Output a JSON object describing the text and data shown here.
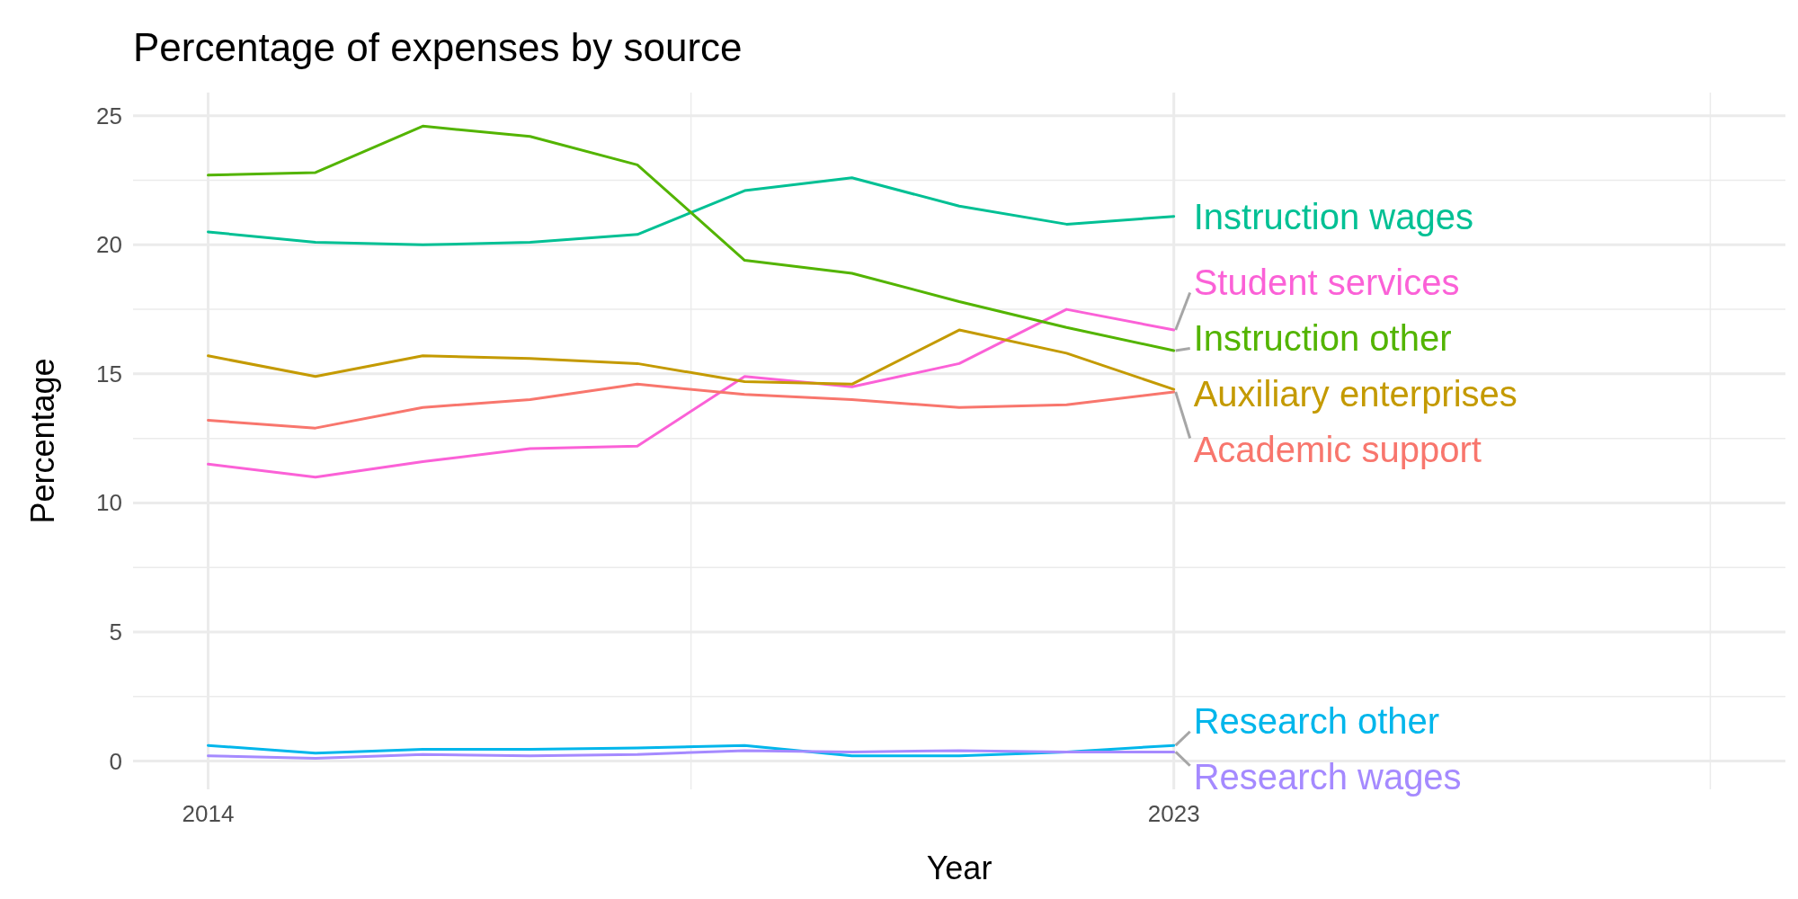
{
  "chart_data": {
    "type": "line",
    "title": "Percentage of expenses by source",
    "xlabel": "Year",
    "ylabel": "Percentage",
    "x": [
      2014,
      2015,
      2016,
      2017,
      2018,
      2019,
      2020,
      2021,
      2022,
      2023
    ],
    "xlim": [
      2013.3,
      2028.7
    ],
    "xticks": [
      2014,
      {
        "value": 2018.5,
        "label": null
      },
      2023,
      {
        "value": 2028,
        "label": null
      }
    ],
    "ylim": [
      -1.1,
      25.9
    ],
    "yticks": [
      0,
      {
        "value": 2.5,
        "label": null
      },
      5,
      {
        "value": 7.5,
        "label": null
      },
      10,
      {
        "value": 12.5,
        "label": null
      },
      15,
      {
        "value": 17.5,
        "label": null
      },
      20,
      {
        "value": 22.5,
        "label": null
      },
      25
    ],
    "grid": true,
    "series": [
      {
        "name": "Instruction wages",
        "color": "#00c094",
        "values": [
          20.5,
          20.1,
          20.0,
          20.1,
          20.4,
          22.1,
          22.6,
          21.5,
          20.8,
          21.1
        ]
      },
      {
        "name": "Student services",
        "color": "#fb61d7",
        "values": [
          11.5,
          11.0,
          11.6,
          12.1,
          12.2,
          14.9,
          14.5,
          15.4,
          17.5,
          16.7
        ]
      },
      {
        "name": "Instruction other",
        "color": "#53b400",
        "values": [
          22.7,
          22.8,
          24.6,
          24.2,
          23.1,
          19.4,
          18.9,
          17.8,
          16.8,
          15.9
        ]
      },
      {
        "name": "Auxiliary enterprises",
        "color": "#c49a00",
        "values": [
          15.7,
          14.9,
          15.7,
          15.6,
          15.4,
          14.7,
          14.6,
          16.7,
          15.8,
          14.4
        ]
      },
      {
        "name": "Academic support",
        "color": "#f8766d",
        "values": [
          13.2,
          12.9,
          13.7,
          14.0,
          14.6,
          14.2,
          14.0,
          13.7,
          13.8,
          14.3
        ]
      },
      {
        "name": "Research other",
        "color": "#00b6eb",
        "values": [
          0.6,
          0.3,
          0.45,
          0.45,
          0.5,
          0.6,
          0.2,
          0.2,
          0.35,
          0.6
        ]
      },
      {
        "name": "Research wages",
        "color": "#a58aff",
        "values": [
          0.2,
          0.1,
          0.25,
          0.2,
          0.25,
          0.4,
          0.35,
          0.4,
          0.35,
          0.35
        ]
      }
    ]
  }
}
